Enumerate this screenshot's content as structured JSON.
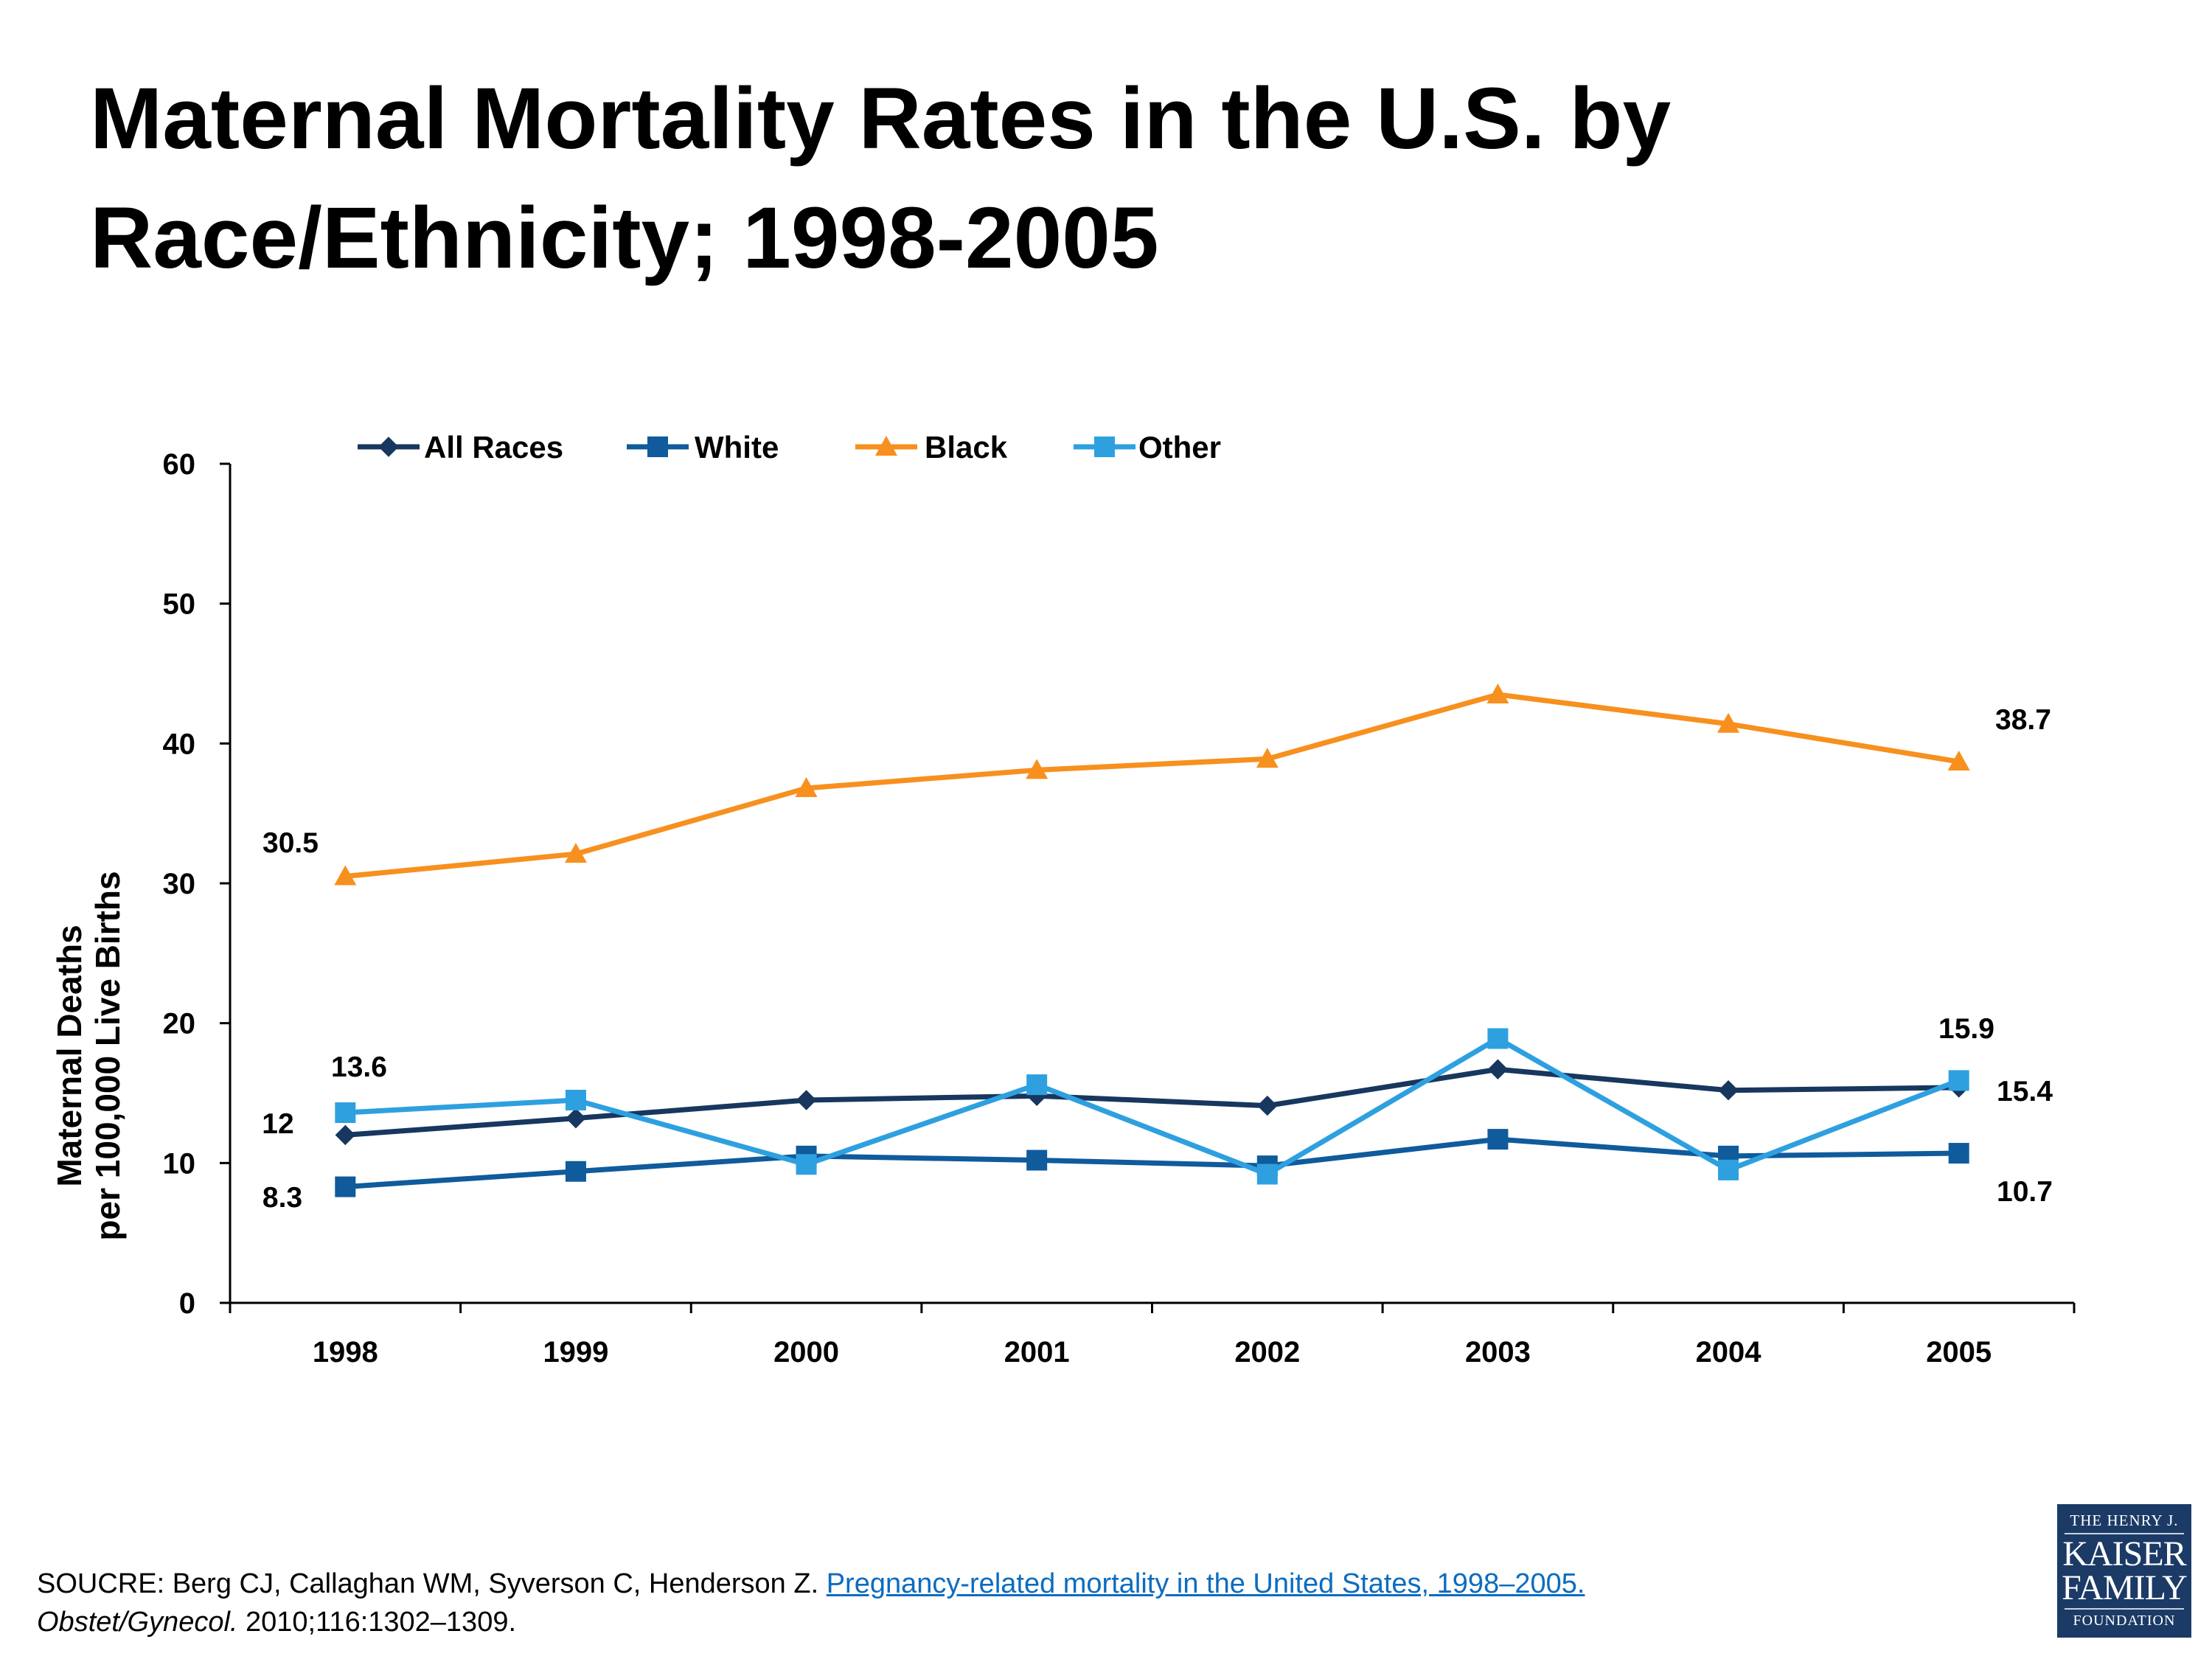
{
  "title": "Maternal Mortality Rates in the U.S. by Race/Ethnicity; 1998-2005",
  "chart_data": {
    "type": "line",
    "title": "Maternal Mortality Rates in the U.S. by Race/Ethnicity; 1998-2005",
    "xlabel": "",
    "ylabel": "Maternal Deaths per 100,000 Live Births",
    "ylabel_lines": [
      "Maternal Deaths",
      "per 100,000 Live Births"
    ],
    "categories": [
      "1998",
      "1999",
      "2000",
      "2001",
      "2002",
      "2003",
      "2004",
      "2005"
    ],
    "ylim": [
      0,
      60
    ],
    "yticks": [
      0,
      10,
      20,
      30,
      40,
      50,
      60
    ],
    "grid": false,
    "legend_position": "top",
    "series": [
      {
        "name": "All Races",
        "color": "#17375e",
        "marker": "diamond",
        "values": [
          12,
          13.2,
          14.5,
          14.8,
          14.1,
          16.7,
          15.2,
          15.4
        ]
      },
      {
        "name": "White",
        "color": "#0f5b9c",
        "marker": "square",
        "values": [
          8.3,
          9.4,
          10.5,
          10.2,
          9.8,
          11.7,
          10.5,
          10.7
        ]
      },
      {
        "name": "Black",
        "color": "#f7901e",
        "marker": "triangle",
        "values": [
          30.5,
          32.1,
          36.8,
          38.1,
          38.9,
          43.5,
          41.4,
          38.7
        ]
      },
      {
        "name": "Other",
        "color": "#2ea0e0",
        "marker": "square",
        "values": [
          13.6,
          14.5,
          9.9,
          15.6,
          9.2,
          18.9,
          9.5,
          15.9
        ]
      }
    ],
    "annotations": [
      "30.5",
      "38.7",
      "13.6",
      "12",
      "8.3",
      "15.9",
      "15.4",
      "10.7"
    ]
  },
  "source": {
    "prefix": "SOUCRE: Berg CJ, Callaghan WM, Syverson C, Henderson Z. ",
    "link_text": "Pregnancy-related mortality in the United States, 1998–2005.",
    "journal": "Obstet/Gynecol.",
    "citation": " 2010;116:1302–1309."
  },
  "logo": {
    "line1": "THE HENRY J.",
    "line2": "KAISER",
    "line3": "FAMILY",
    "line4": "FOUNDATION",
    "background": "#1b3a66"
  }
}
